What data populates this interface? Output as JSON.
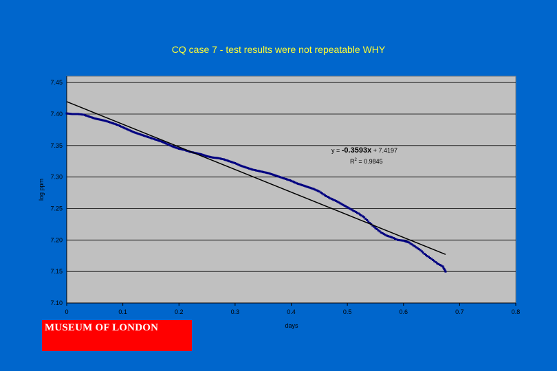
{
  "chart_data": {
    "type": "scatter",
    "title": "CQ case 7 -  test results were not repeatable WHY",
    "xlabel": "days",
    "ylabel": "log ppm",
    "xlim": [
      0,
      0.8
    ],
    "ylim": [
      7.1,
      7.46
    ],
    "x_ticks": [
      "0",
      "0.1",
      "0.2",
      "0.3",
      "0.4",
      "0.5",
      "0.6",
      "0.7",
      "0.8"
    ],
    "y_ticks": [
      "7.10",
      "7.15",
      "7.20",
      "7.25",
      "7.30",
      "7.35",
      "7.40",
      "7.45"
    ],
    "grid": "horizontal",
    "colors": {
      "background": "#0066cc",
      "plot_area": "#c0c0c0",
      "points": "#000080",
      "trendline": "#000000",
      "title": "#ffff33"
    },
    "series": [
      {
        "x": [
          0.0,
          0.01,
          0.02,
          0.03,
          0.04,
          0.05,
          0.06,
          0.07,
          0.08,
          0.09,
          0.1,
          0.11,
          0.12,
          0.13,
          0.14,
          0.15,
          0.16,
          0.17,
          0.18,
          0.19,
          0.2,
          0.21,
          0.22,
          0.23,
          0.24,
          0.25,
          0.26,
          0.27,
          0.28,
          0.29,
          0.3,
          0.31,
          0.32,
          0.33,
          0.34,
          0.35,
          0.36,
          0.37,
          0.38,
          0.39,
          0.4,
          0.41,
          0.42,
          0.43,
          0.44,
          0.45,
          0.46,
          0.47,
          0.48,
          0.49,
          0.5,
          0.51,
          0.52,
          0.53,
          0.54,
          0.55,
          0.56,
          0.57,
          0.58,
          0.59,
          0.6,
          0.61,
          0.62,
          0.63,
          0.64,
          0.65,
          0.66,
          0.67,
          0.675
        ],
        "y": [
          7.401,
          7.4,
          7.4,
          7.399,
          7.396,
          7.393,
          7.391,
          7.389,
          7.386,
          7.383,
          7.379,
          7.375,
          7.371,
          7.368,
          7.365,
          7.362,
          7.359,
          7.356,
          7.352,
          7.348,
          7.345,
          7.343,
          7.34,
          7.338,
          7.336,
          7.333,
          7.331,
          7.33,
          7.328,
          7.325,
          7.322,
          7.318,
          7.315,
          7.312,
          7.31,
          7.308,
          7.306,
          7.303,
          7.3,
          7.297,
          7.294,
          7.29,
          7.287,
          7.284,
          7.281,
          7.277,
          7.271,
          7.266,
          7.262,
          7.257,
          7.252,
          7.247,
          7.242,
          7.236,
          7.227,
          7.219,
          7.212,
          7.207,
          7.204,
          7.2,
          7.199,
          7.196,
          7.19,
          7.184,
          7.176,
          7.17,
          7.163,
          7.158,
          7.15
        ]
      }
    ],
    "trendline": {
      "slope": -0.3593,
      "intercept": 7.4197,
      "x_range": [
        0,
        0.675
      ],
      "equation_prefix": "y = ",
      "equation_coef": "-0.3593x",
      "equation_suffix": " + 7.4197",
      "r2_prefix": "R",
      "r2_exponent": "2",
      "r2_value": " = 0.9845"
    }
  },
  "logo": {
    "text": "MUSEUM OF LONDON"
  }
}
